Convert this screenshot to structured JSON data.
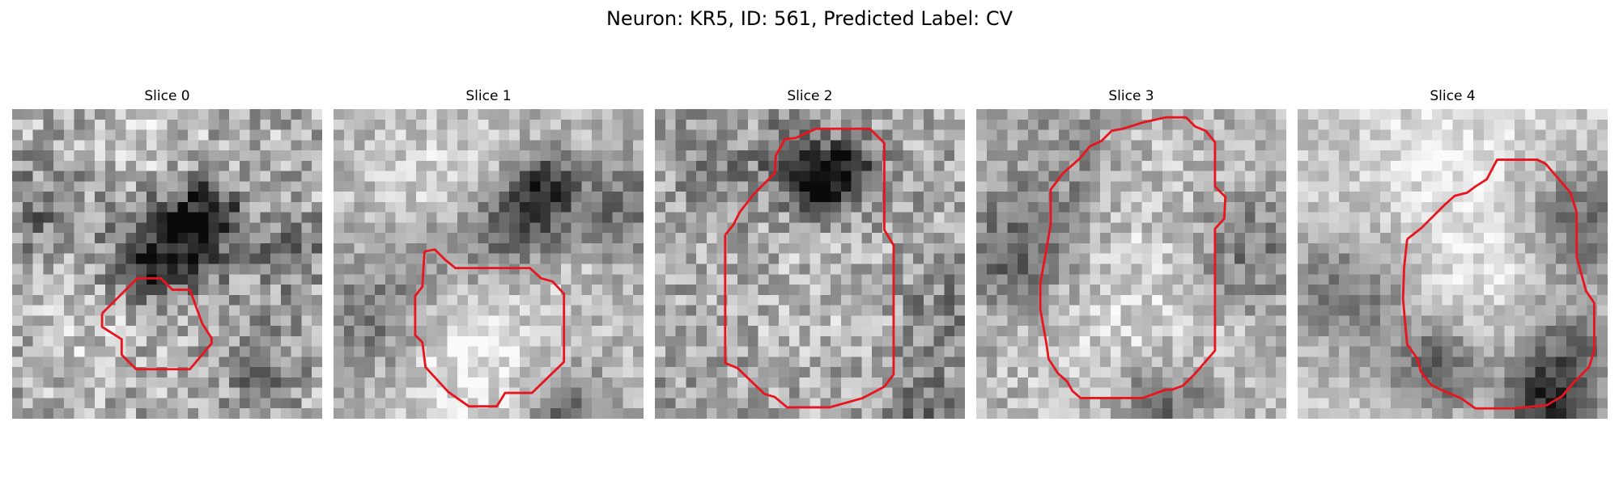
{
  "figure": {
    "title": "Neuron: KR5, ID: 561, Predicted Label: CV"
  },
  "colors": {
    "contour": "#e8141e",
    "background": "#ffffff",
    "colormap": "grayscale"
  },
  "slices": [
    {
      "title": "Slice 0"
    },
    {
      "title": "Slice 1"
    },
    {
      "title": "Slice 2"
    },
    {
      "title": "Slice 3"
    },
    {
      "title": "Slice 4"
    }
  ]
}
